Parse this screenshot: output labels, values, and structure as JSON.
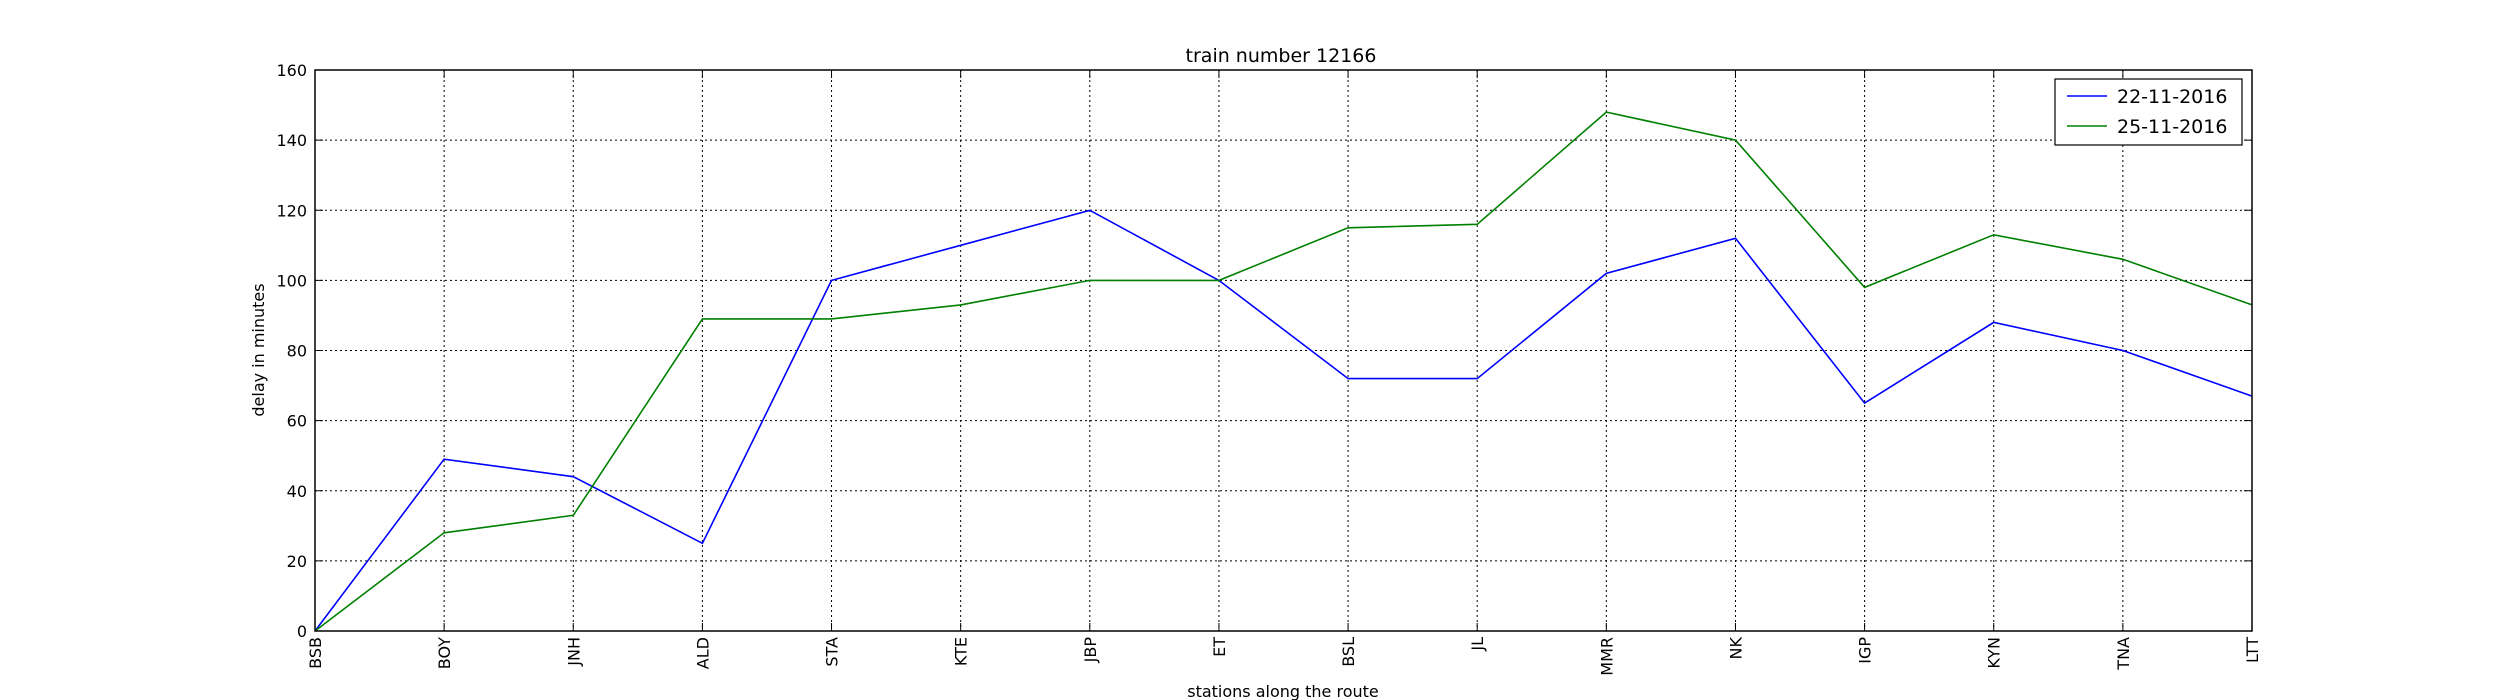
{
  "chart_data": {
    "type": "line",
    "title": "train number 12166",
    "xlabel": "stations along the route",
    "ylabel": "delay in minutes",
    "categories": [
      "BSB",
      "BOY",
      "JNH",
      "ALD",
      "STA",
      "KTE",
      "JBP",
      "ET",
      "BSL",
      "JL",
      "MMR",
      "NK",
      "IGP",
      "KYN",
      "TNA",
      "LTT"
    ],
    "ylim": [
      0,
      160
    ],
    "yticks": [
      0,
      20,
      40,
      60,
      80,
      100,
      120,
      140,
      160
    ],
    "grid": true,
    "legend_position": "top-right",
    "series": [
      {
        "name": "22-11-2016",
        "color": "#0000ff",
        "values": [
          0,
          49,
          44,
          25,
          100,
          110,
          120,
          100,
          72,
          72,
          102,
          112,
          65,
          88,
          80,
          67
        ]
      },
      {
        "name": "25-11-2016",
        "color": "#008000",
        "values": [
          0,
          28,
          33,
          89,
          89,
          93,
          100,
          100,
          115,
          116,
          148,
          140,
          98,
          113,
          106,
          93
        ]
      }
    ]
  }
}
